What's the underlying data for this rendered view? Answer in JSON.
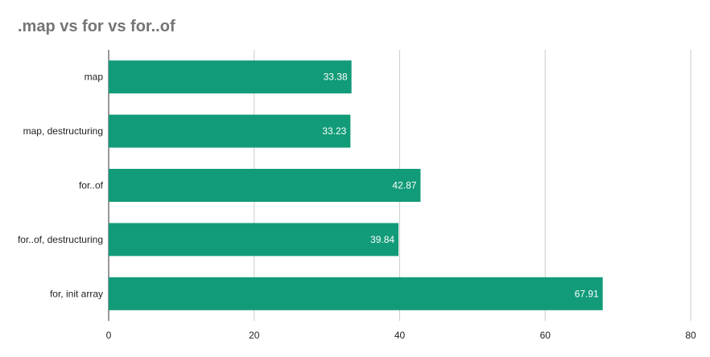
{
  "chart_data": {
    "type": "bar",
    "orientation": "horizontal",
    "title": ".map vs for vs for..of",
    "categories": [
      "map",
      "map, destructuring",
      "for..of",
      "for..of, destructuring",
      "for, init array"
    ],
    "values": [
      33.38,
      33.23,
      42.87,
      39.84,
      67.91
    ],
    "data_labels": [
      "33.38",
      "33.23",
      "42.87",
      "39.84",
      "67.91"
    ],
    "xlim": [
      0,
      80
    ],
    "x_ticks": [
      "0",
      "20",
      "40",
      "60",
      "80"
    ],
    "grid": true,
    "bar_color": "#129b78",
    "grid_color": "#cccccc"
  }
}
